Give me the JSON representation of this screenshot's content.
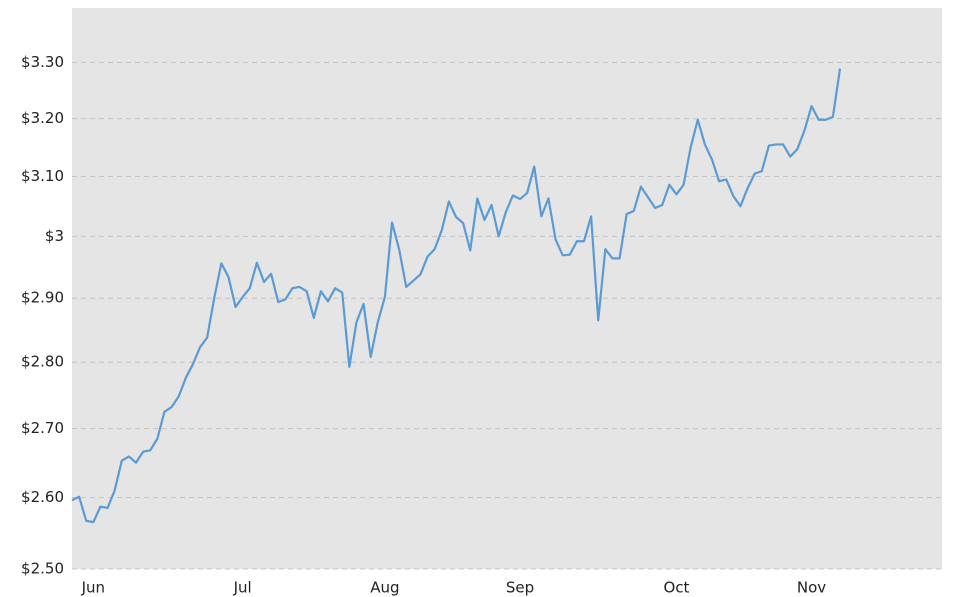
{
  "chart_data": {
    "type": "line",
    "categories": [
      null,
      null,
      null,
      "Jun",
      null,
      null,
      null,
      null,
      null,
      null,
      null,
      null,
      null,
      null,
      null,
      null,
      null,
      null,
      null,
      null,
      null,
      null,
      null,
      null,
      "Jul",
      null,
      null,
      null,
      null,
      null,
      null,
      null,
      null,
      null,
      null,
      null,
      null,
      null,
      null,
      null,
      null,
      null,
      null,
      null,
      "Aug",
      null,
      null,
      null,
      null,
      null,
      null,
      null,
      null,
      null,
      null,
      null,
      null,
      null,
      null,
      null,
      null,
      null,
      null,
      "Sep",
      null,
      null,
      null,
      null,
      null,
      null,
      null,
      null,
      null,
      null,
      null,
      null,
      null,
      null,
      null,
      null,
      null,
      null,
      null,
      null,
      null,
      "Oct",
      null,
      null,
      null,
      null,
      null,
      null,
      null,
      null,
      null,
      null,
      null,
      null,
      null,
      null,
      null,
      null,
      null,
      null,
      "Nov",
      null,
      null,
      null,
      null
    ],
    "values": [
      2.596,
      2.601,
      2.567,
      2.565,
      2.587,
      2.585,
      2.61,
      2.653,
      2.659,
      2.65,
      2.666,
      2.668,
      2.685,
      2.725,
      2.732,
      2.748,
      2.776,
      2.797,
      2.823,
      2.838,
      2.9,
      2.956,
      2.934,
      2.886,
      2.902,
      2.916,
      2.957,
      2.926,
      2.939,
      2.894,
      2.898,
      2.916,
      2.918,
      2.911,
      2.869,
      2.911,
      2.895,
      2.916,
      2.909,
      2.793,
      2.862,
      2.891,
      2.808,
      2.862,
      2.902,
      3.023,
      2.979,
      2.918,
      2.928,
      2.938,
      2.967,
      2.979,
      3.01,
      3.058,
      3.032,
      3.022,
      2.977,
      3.063,
      3.027,
      3.052,
      3.0,
      3.04,
      3.068,
      3.062,
      3.072,
      3.117,
      3.033,
      3.063,
      2.995,
      2.969,
      2.97,
      2.992,
      2.992,
      3.033,
      2.865,
      2.979,
      2.964,
      2.964,
      3.037,
      3.042,
      3.083,
      3.065,
      3.047,
      3.052,
      3.086,
      3.07,
      3.086,
      3.15,
      3.198,
      3.155,
      3.129,
      3.092,
      3.095,
      3.067,
      3.05,
      3.08,
      3.105,
      3.109,
      3.153,
      3.155,
      3.155,
      3.134,
      3.147,
      3.179,
      3.222,
      3.198,
      3.198,
      3.203,
      3.289
    ],
    "color": "#5b9bd5",
    "log_scale": true,
    "ylim": [
      2.5,
      3.4
    ],
    "yticks": [
      {
        "value": 2.5,
        "label": "$2.50"
      },
      {
        "value": 2.6,
        "label": "$2.60"
      },
      {
        "value": 2.7,
        "label": "$2.70"
      },
      {
        "value": 2.8,
        "label": "$2.80"
      },
      {
        "value": 2.9,
        "label": "$2.90"
      },
      {
        "value": 3,
        "label": "$3"
      },
      {
        "value": 3.1,
        "label": "$3.10"
      },
      {
        "value": 3.2,
        "label": "$3.20"
      },
      {
        "value": 3.3,
        "label": "$3.30"
      }
    ],
    "grid": true
  }
}
